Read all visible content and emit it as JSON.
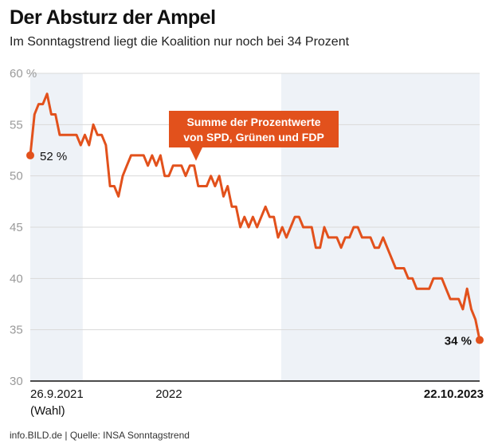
{
  "title": "Der Absturz der Ampel",
  "subtitle": "Im Sonntagstrend liegt die Koalition nur noch bei 34 Prozent",
  "footer": "info.BILD.de | Quelle: INSA Sonntagstrend",
  "colors": {
    "line": "#e2511c",
    "band": "#eef2f7",
    "grid": "#d9d9d9",
    "axis": "#111111"
  },
  "chart_data": {
    "type": "line",
    "ylim": [
      30,
      60
    ],
    "yticks": [
      30,
      35,
      40,
      45,
      50,
      55,
      60
    ],
    "ytick_labels": [
      "30",
      "35",
      "40",
      "45",
      "50",
      "55",
      "60 %"
    ],
    "xlim": [
      0,
      120
    ],
    "x_labels": [
      {
        "x": 0,
        "line1": "26.9.2021",
        "line2": "(Wahl)",
        "bold": false
      },
      {
        "x": 37,
        "line1": "2022",
        "line2": "",
        "bold": false
      },
      {
        "x": 120,
        "line1": "22.10.2023",
        "line2": "",
        "bold": true
      }
    ],
    "shaded_ranges": [
      [
        0,
        14
      ],
      [
        67,
        120
      ]
    ],
    "grid": true,
    "series": [
      {
        "values": [
          52,
          56,
          57,
          57,
          58,
          56,
          56,
          54,
          54,
          54,
          54,
          54,
          53,
          54,
          53,
          55,
          54,
          54,
          53,
          49,
          49,
          48,
          50,
          51,
          52,
          52,
          52,
          52,
          51,
          52,
          51,
          52,
          50,
          50,
          51,
          51,
          51,
          50,
          51,
          51,
          49,
          49,
          49,
          50,
          49,
          50,
          48,
          49,
          47,
          47,
          45,
          46,
          45,
          46,
          45,
          46,
          47,
          46,
          46,
          44,
          45,
          44,
          45,
          46,
          46,
          45,
          45,
          45,
          43,
          43,
          45,
          44,
          44,
          44,
          43,
          44,
          44,
          45,
          45,
          44,
          44,
          44,
          43,
          43,
          44,
          43,
          42,
          41,
          41,
          41,
          40,
          40,
          39,
          39,
          39,
          39,
          40,
          40,
          40,
          39,
          38,
          38,
          38,
          37,
          39,
          37,
          36,
          34
        ]
      }
    ],
    "annotations": {
      "start_label": "52 %",
      "end_label": "34 %",
      "callout_line1": "Summe der Prozentwerte",
      "callout_line2": "von SPD, Grünen und FDP"
    }
  }
}
